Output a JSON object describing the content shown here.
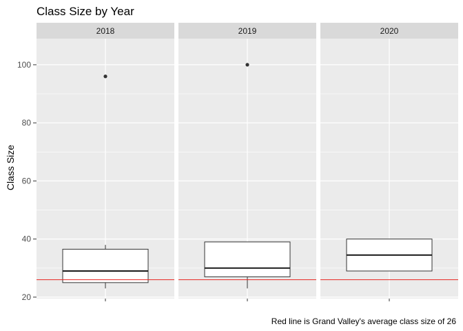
{
  "chart_data": {
    "type": "boxplot",
    "title": "Class Size by Year",
    "ylabel": "Class Size",
    "xlabel": "",
    "caption": "Red line is Grand Valley's average class size of 26",
    "ylim": [
      19.5,
      109
    ],
    "yticks": [
      20,
      40,
      60,
      80,
      100
    ],
    "grid": true,
    "facets": [
      {
        "label": "2018",
        "box": {
          "min": 23,
          "q1": 25,
          "median": 29,
          "q3": 36.5,
          "max": 38
        },
        "outliers": [
          96
        ]
      },
      {
        "label": "2019",
        "box": {
          "min": 23,
          "q1": 27,
          "median": 30,
          "q3": 39,
          "max": 39
        },
        "outliers": [
          100
        ]
      },
      {
        "label": "2020",
        "box": {
          "min": 29,
          "q1": 29,
          "median": 34.5,
          "q3": 40,
          "max": 40
        },
        "outliers": []
      }
    ],
    "reference_line": {
      "value": 26,
      "color": "#e8231f"
    },
    "colors": {
      "panel_bg": "#ebebeb",
      "strip_bg": "#d9d9d9",
      "grid": "#ffffff",
      "box_fill": "#ffffff",
      "box_line": "#333333"
    }
  }
}
